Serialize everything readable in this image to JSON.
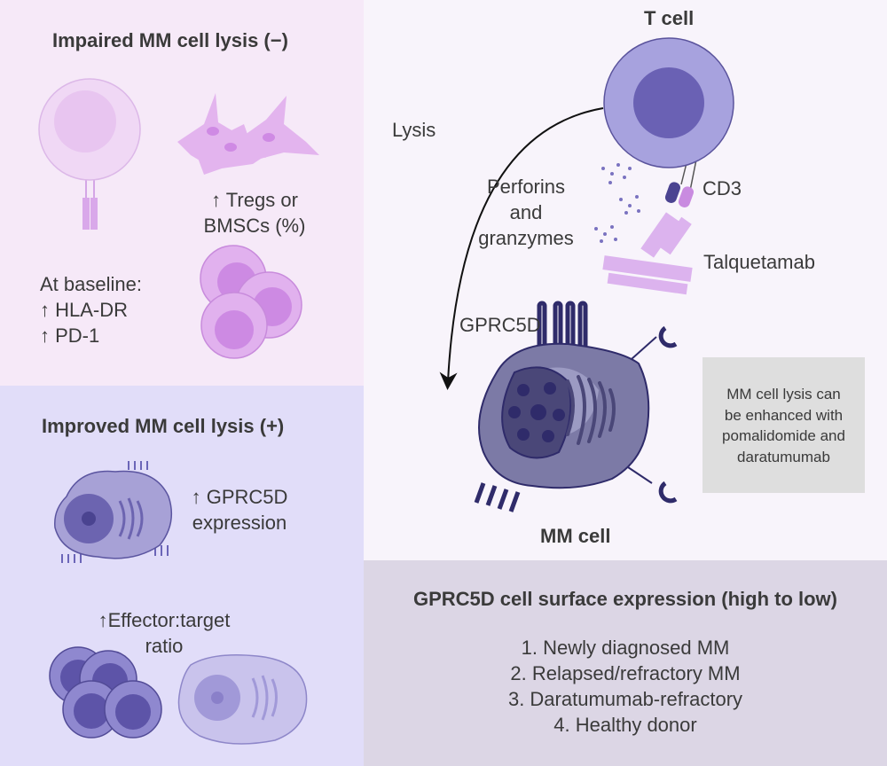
{
  "impaired": {
    "title": "Impaired MM cell lysis (−)",
    "tregs_line1": "↑ Tregs or",
    "tregs_line2": "BMSCs (%)",
    "baseline_label": "At baseline:",
    "baseline_items": [
      "↑ HLA-DR",
      "↑ PD-1"
    ]
  },
  "improved": {
    "title": "Improved MM cell lysis (+)",
    "gprc5d_line1": "↑ GPRC5D",
    "gprc5d_line2": "expression",
    "ratio_line1": "↑Effector:target",
    "ratio_line2": "ratio"
  },
  "mechanism": {
    "t_cell": "T cell",
    "lysis": "Lysis",
    "perforins": [
      "Perforins",
      "and",
      "granzymes"
    ],
    "cd3": "CD3",
    "talquetamab": "Talquetamab",
    "gprc5d": "GPRC5D",
    "mm_cell": "MM cell",
    "note": [
      "MM cell lysis can",
      "be enhanced with",
      "pomalidomide and",
      "daratumumab"
    ]
  },
  "expression": {
    "title": "GPRC5D cell surface expression (high to low)",
    "items": [
      "1. Newly diagnosed MM",
      "2. Relapsed/refractory MM",
      "3. Daratumumab-refractory",
      "4. Healthy donor"
    ]
  },
  "colors": {
    "impaired_bg": "#f6e9f8",
    "improved_bg": "#e1ddf9",
    "expression_bg": "#dcd6e5",
    "note_bg": "#dedede",
    "mm_cell": "#7b7aa3",
    "t_cell": "#9f98d6"
  }
}
